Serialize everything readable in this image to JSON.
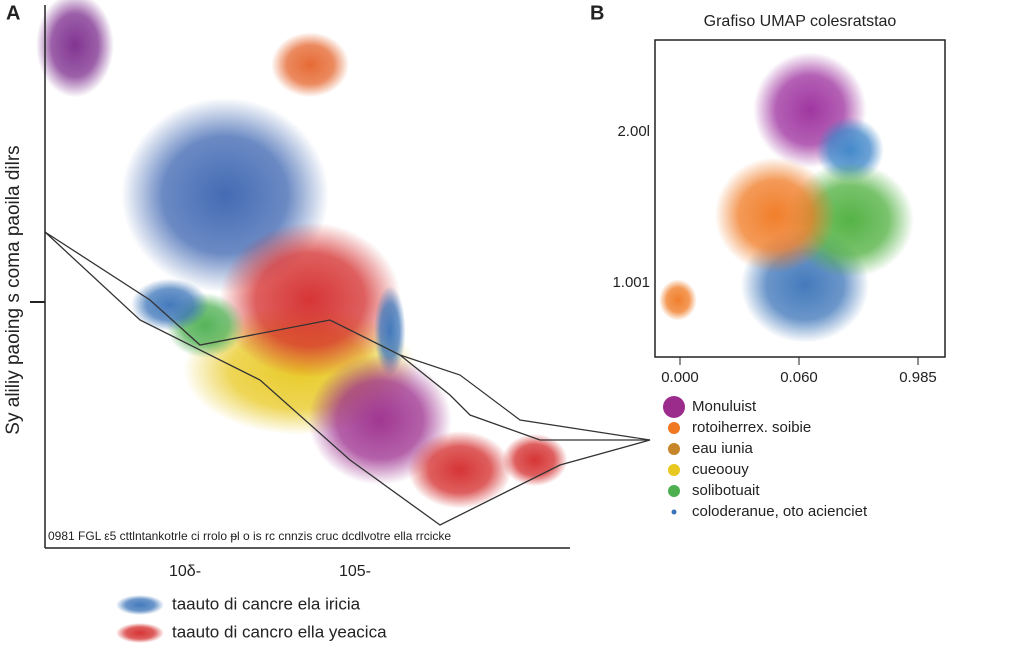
{
  "chart_data": [
    {
      "type": "scatter",
      "panel": "A",
      "ylabel": "Sy aliliy paoing s coma paoila dilrs",
      "xtick_labels": [
        "10δ-",
        "105-"
      ],
      "strip_text": "0981 FGL  ε5 cttlntankotrle ci rrolo ᵽl o   is rc cnnzis cruc dcdlvotre ella rrcicke",
      "xlim": [
        0,
        100
      ],
      "ylim": [
        0,
        100
      ],
      "clusters": [
        {
          "color": "#7b2a8c",
          "x": [
            5.7
          ],
          "y": [
            92.6
          ],
          "sx": [
            5.7
          ],
          "sy": [
            7.4
          ]
        },
        {
          "color": "#e5632a",
          "x": [
            50.5
          ],
          "y": [
            89
          ],
          "sx": [
            5.7
          ],
          "sy": [
            4.6
          ]
        },
        {
          "color": "#3a63b0",
          "x": [
            34.3
          ],
          "y": [
            65
          ],
          "sx": [
            15.2
          ],
          "sy": [
            13.8
          ]
        },
        {
          "color": "#e8c81e",
          "x": [
            48.6
          ],
          "y": [
            32.8
          ],
          "sx": [
            17.1
          ],
          "sy": [
            9.2
          ]
        },
        {
          "color": "#d42a2a",
          "x": [
            50.5
          ],
          "y": [
            45.7
          ],
          "sx": [
            13.3
          ],
          "sy": [
            11
          ]
        },
        {
          "color": "#4caf50",
          "x": [
            30.5
          ],
          "y": [
            41
          ],
          "sx": [
            5.7
          ],
          "sy": [
            4.6
          ]
        },
        {
          "color": "#3a73b8",
          "x": [
            23.8
          ],
          "y": [
            44.8
          ],
          "sx": [
            5.7
          ],
          "sy": [
            3.7
          ]
        },
        {
          "color": "#3a73b8",
          "x": [
            65.7
          ],
          "y": [
            40
          ],
          "sx": [
            2.3
          ],
          "sy": [
            6.4
          ]
        },
        {
          "color": "#9b2c8c",
          "x": [
            63.8
          ],
          "y": [
            23.6
          ],
          "sx": [
            10.5
          ],
          "sy": [
            9.2
          ]
        },
        {
          "color": "#d42a2a",
          "x": [
            79
          ],
          "y": [
            14.4
          ],
          "sx": [
            7.6
          ],
          "sy": [
            5.5
          ]
        },
        {
          "color": "#d42a2a",
          "x": [
            93.3
          ],
          "y": [
            16.2
          ],
          "sx": [
            4.8
          ],
          "sy": [
            3.7
          ]
        }
      ],
      "legend": [
        {
          "name": "taauto di cancre ela iricia",
          "color": "#3a73b8"
        },
        {
          "name": "taauto di cancro ella yeacica",
          "color": "#d42a2a"
        }
      ]
    },
    {
      "type": "scatter",
      "panel": "B",
      "title": "Grafiso UMAP colesratstao",
      "xtick_labels": [
        "0.000",
        "0.060",
        "0.985"
      ],
      "ytick_labels": [
        "2.00l",
        "1.001"
      ],
      "xlim": [
        0,
        1
      ],
      "ylim": [
        0,
        1
      ],
      "clusters": [
        {
          "color": "#3a73b8",
          "x": [
            0.517
          ],
          "y": [
            0.227
          ],
          "sx": [
            0.17
          ],
          "sy": [
            0.14
          ]
        },
        {
          "color": "#9b2c9c",
          "x": [
            0.534
          ],
          "y": [
            0.779
          ],
          "sx": [
            0.15
          ],
          "sy": [
            0.14
          ]
        },
        {
          "color": "#3a83c8",
          "x": [
            0.672
          ],
          "y": [
            0.653
          ],
          "sx": [
            0.09
          ],
          "sy": [
            0.08
          ]
        },
        {
          "color": "#4caf3c",
          "x": [
            0.672
          ],
          "y": [
            0.432
          ],
          "sx": [
            0.17
          ],
          "sy": [
            0.14
          ]
        },
        {
          "color": "#f07820",
          "x": [
            0.414
          ],
          "y": [
            0.448
          ],
          "sx": [
            0.16
          ],
          "sy": [
            0.14
          ]
        },
        {
          "color": "#f07820",
          "x": [
            0.079
          ],
          "y": [
            0.18
          ],
          "sx": [
            0.05
          ],
          "sy": [
            0.05
          ]
        }
      ],
      "legend": [
        {
          "name": "Monuluist",
          "color": "#9b2c8c"
        },
        {
          "name": "rotoiherrex. soibie",
          "color": "#f07820"
        },
        {
          "name": "eau iunia",
          "color": "#c8862a"
        },
        {
          "name": "cueoouy",
          "color": "#e8c81e"
        },
        {
          "name": "solibotuait",
          "color": "#4caf50"
        },
        {
          "name": "coloderanue, oto acienciet",
          "color": "#3a73b8"
        }
      ]
    }
  ],
  "labels": {
    "a": "A",
    "b": "B"
  }
}
